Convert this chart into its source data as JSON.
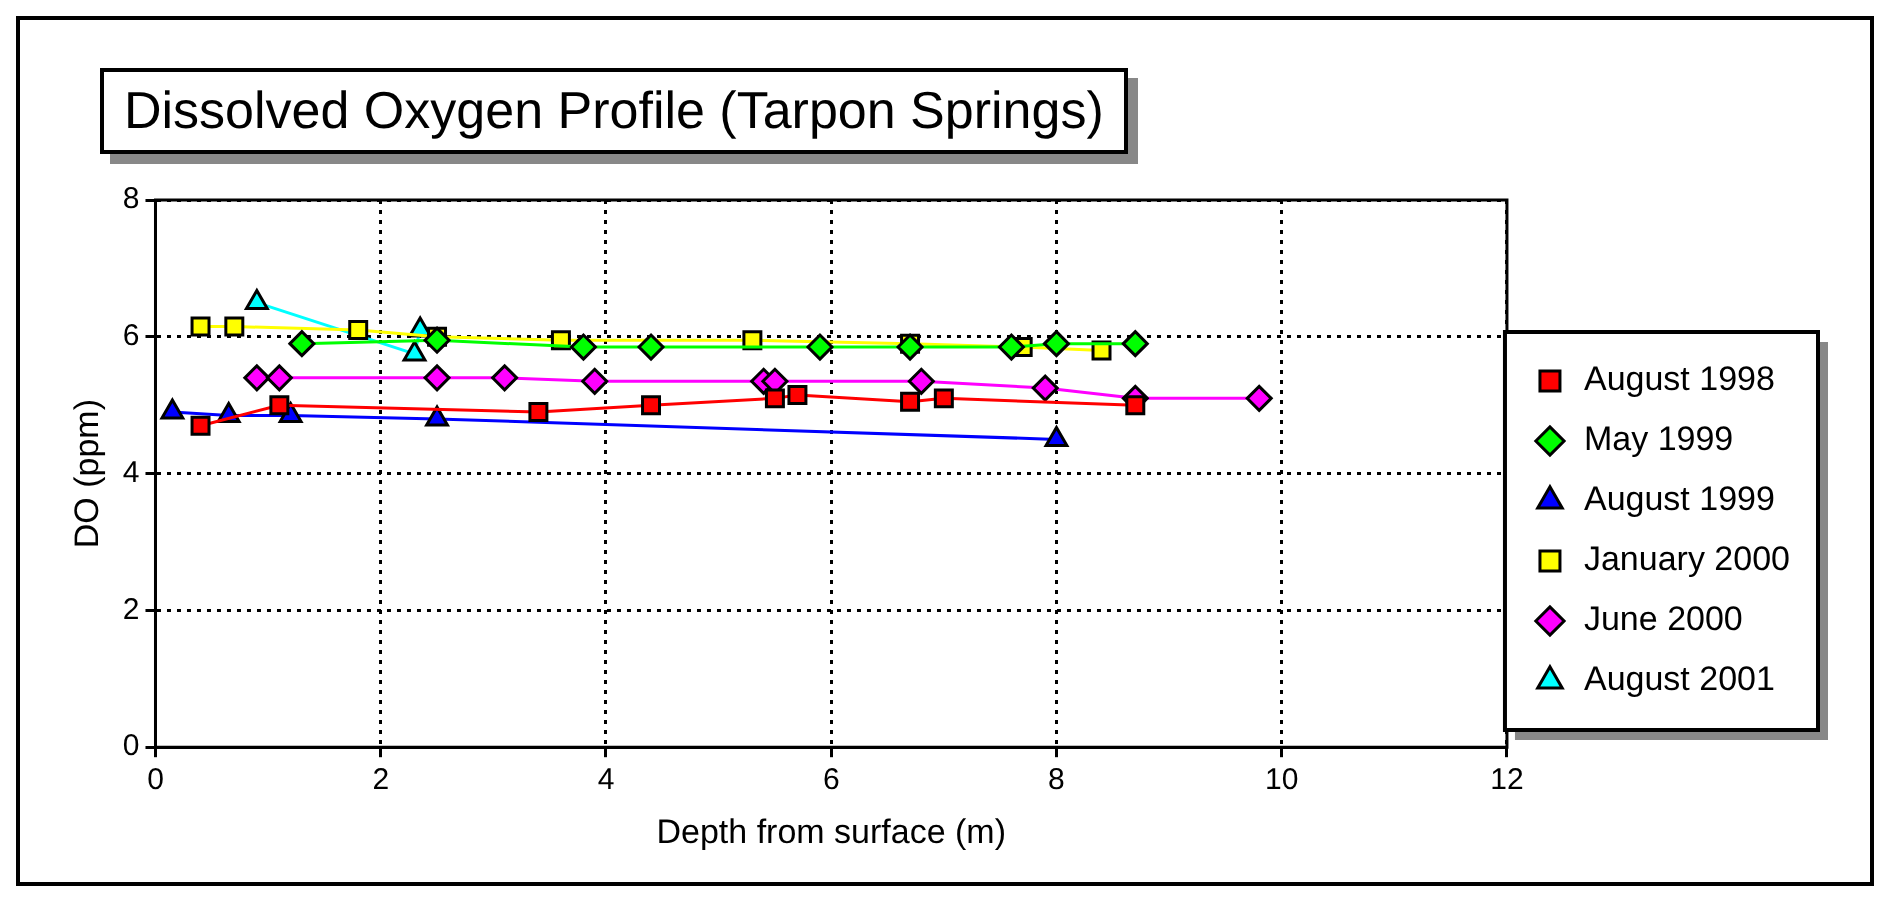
{
  "chart_data": {
    "type": "line",
    "title": "Dissolved Oxygen Profile (Tarpon Springs)",
    "xlabel": "Depth from surface (m)",
    "ylabel": "DO (ppm)",
    "xlim": [
      0,
      12
    ],
    "xticks": [
      0,
      2,
      4,
      6,
      8,
      10,
      12
    ],
    "ylim": [
      0,
      8
    ],
    "yticks": [
      0,
      2,
      4,
      6,
      8
    ],
    "grid": true,
    "legend": "right",
    "line_style": "solid",
    "series": [
      {
        "name": "August 1998",
        "color": "#ff0000",
        "marker": "square",
        "x": [
          0.4,
          1.1,
          3.4,
          4.4,
          5.5,
          5.7,
          6.7,
          7.0,
          8.7
        ],
        "values": [
          4.7,
          5.0,
          4.9,
          5.0,
          5.1,
          5.15,
          5.05,
          5.1,
          5.0
        ]
      },
      {
        "name": "May 1999",
        "color": "#00ff00",
        "marker": "diamond",
        "x": [
          1.3,
          2.5,
          3.8,
          4.4,
          5.9,
          6.7,
          7.6,
          8.0,
          8.7
        ],
        "values": [
          5.9,
          5.95,
          5.85,
          5.85,
          5.85,
          5.85,
          5.85,
          5.9,
          5.9
        ]
      },
      {
        "name": "August 1999",
        "color": "#0000ff",
        "marker": "triangle",
        "x": [
          0.15,
          0.65,
          1.2,
          2.5,
          8.0
        ],
        "values": [
          4.9,
          4.85,
          4.85,
          4.8,
          4.5
        ]
      },
      {
        "name": "January 2000",
        "color": "#ffff00",
        "marker": "square",
        "x": [
          0.4,
          0.7,
          1.8,
          2.5,
          3.6,
          5.3,
          6.7,
          7.7,
          8.4
        ],
        "values": [
          6.15,
          6.15,
          6.1,
          6.0,
          5.95,
          5.95,
          5.9,
          5.85,
          5.8
        ]
      },
      {
        "name": "June 2000",
        "color": "#ff00ff",
        "marker": "diamond",
        "x": [
          0.9,
          1.1,
          2.5,
          3.1,
          3.9,
          5.4,
          5.5,
          6.8,
          7.9,
          8.7,
          9.8
        ],
        "values": [
          5.4,
          5.4,
          5.4,
          5.4,
          5.35,
          5.35,
          5.35,
          5.35,
          5.25,
          5.1,
          5.1
        ]
      },
      {
        "name": "August 2001",
        "color": "#00ffff",
        "marker": "triangle",
        "x": [
          0.9,
          2.3,
          2.35
        ],
        "values": [
          6.5,
          5.75,
          6.1
        ]
      }
    ]
  }
}
